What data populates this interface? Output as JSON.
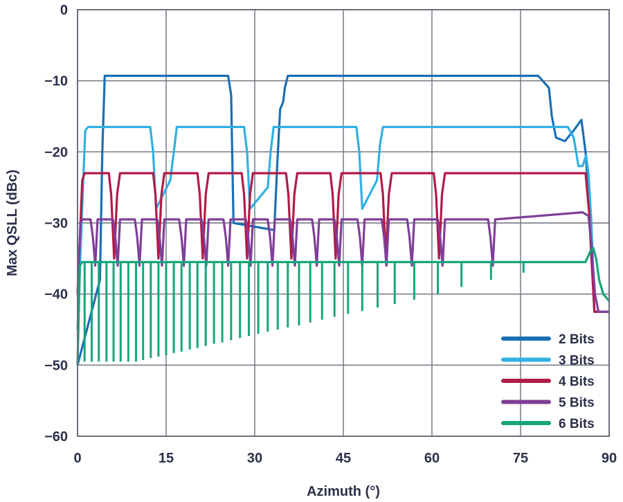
{
  "chart_data": {
    "type": "line",
    "xlabel": "Azimuth (°)",
    "ylabel": "Max QSLL (dBc)",
    "xlim": [
      0,
      90
    ],
    "ylim": [
      -60,
      0
    ],
    "xticks": [
      0,
      15,
      30,
      45,
      60,
      75,
      90
    ],
    "yticks": [
      0,
      -10,
      -20,
      -30,
      -40,
      -50,
      -60
    ],
    "xtick_labels": [
      "0",
      "15",
      "30",
      "45",
      "60",
      "75",
      "90"
    ],
    "ytick_labels": [
      "0",
      "−10",
      "−20",
      "−30",
      "−40",
      "−50",
      "−60"
    ],
    "grid": true,
    "legend_position": "bottom-right",
    "series": [
      {
        "name": "2 Bits",
        "color": "#1a6fb5",
        "x": [
          0,
          3.8,
          4.2,
          4.6,
          25.5,
          26.0,
          26.4,
          33.3,
          33.8,
          34.3,
          34.8,
          35.1,
          35.6,
          78.0,
          79.8,
          80.3,
          81.0,
          82.5,
          84.0,
          85.3,
          86.0,
          86.8,
          87.5,
          88.0,
          88.6,
          90
        ],
        "y": [
          -50,
          -38,
          -20,
          -9.3,
          -9.3,
          -12,
          -30,
          -31,
          -22,
          -14,
          -13,
          -11,
          -9.3,
          -9.3,
          -11,
          -15,
          -18,
          -18.5,
          -17,
          -15.5,
          -20,
          -30,
          -42.5,
          -42.5,
          -42.5,
          -42.5
        ]
      },
      {
        "name": "3 Bits",
        "color": "#30b0e3",
        "x": [
          0,
          1.3,
          1.8,
          12.3,
          12.8,
          13.3,
          15.7,
          16.3,
          16.8,
          28.2,
          28.7,
          29.2,
          32.2,
          32.7,
          33.2,
          47.2,
          47.7,
          48.2,
          50.7,
          51.2,
          51.7,
          52.2,
          83.0,
          84.0,
          84.8,
          85.5,
          86.1,
          86.5,
          87.0,
          87.5,
          90
        ],
        "y": [
          -45,
          -17,
          -16.5,
          -16.5,
          -20,
          -28,
          -24,
          -20,
          -16.5,
          -16.5,
          -20,
          -28,
          -25,
          -20,
          -16.5,
          -16.5,
          -20,
          -28,
          -24,
          -19,
          -16.5,
          -16.5,
          -16.5,
          -18,
          -22,
          -22,
          -20.5,
          -23,
          -30,
          -42.5,
          -42.5
        ]
      },
      {
        "name": "4 Bits",
        "color": "#b11b46",
        "x": [
          0,
          0.8,
          1.2,
          5.3,
          5.7,
          6.2,
          6.7,
          7.2,
          12.8,
          13.2,
          13.7,
          14.2,
          14.7,
          20.3,
          20.7,
          21.2,
          21.7,
          22.2,
          27.8,
          28.2,
          28.7,
          29.2,
          29.7,
          35.3,
          35.7,
          36.2,
          36.7,
          37.2,
          42.8,
          43.2,
          43.7,
          44.2,
          44.7,
          51.3,
          51.7,
          52.2,
          52.7,
          53.2,
          60.3,
          60.7,
          61.2,
          61.7,
          62.2,
          86.0,
          86.6,
          87.0,
          87.5,
          88.0,
          90
        ],
        "y": [
          -40,
          -24,
          -23,
          -23,
          -26,
          -35,
          -26,
          -23,
          -23,
          -26,
          -35,
          -26,
          -23,
          -23,
          -26,
          -35,
          -26,
          -23,
          -23,
          -26,
          -35,
          -26,
          -23,
          -23,
          -26,
          -35,
          -26,
          -23,
          -23,
          -26,
          -35,
          -26,
          -23,
          -23,
          -26,
          -35,
          -26,
          -23,
          -23,
          -26,
          -35,
          -26,
          -23,
          -23,
          -28.5,
          -35,
          -42.5,
          -42.5,
          -42.5
        ]
      },
      {
        "name": "5 Bits",
        "color": "#7f3f98",
        "x": [
          0,
          0.5,
          0.8,
          2.2,
          2.6,
          3.0,
          3.4,
          6.0,
          6.4,
          6.8,
          7.2,
          9.7,
          10.1,
          10.5,
          10.9,
          13.5,
          13.9,
          14.3,
          14.7,
          17.2,
          17.6,
          18.0,
          18.4,
          21.0,
          21.4,
          21.8,
          22.2,
          24.7,
          25.1,
          25.5,
          25.9,
          28.5,
          28.9,
          29.3,
          29.7,
          32.2,
          32.6,
          33.0,
          33.4,
          36.0,
          36.4,
          36.8,
          37.2,
          39.7,
          40.1,
          40.5,
          40.9,
          43.5,
          43.9,
          44.3,
          44.7,
          47.4,
          47.8,
          48.2,
          48.6,
          51.5,
          51.9,
          52.3,
          52.7,
          55.8,
          56.2,
          56.6,
          57.0,
          61.0,
          61.4,
          61.8,
          62.2,
          69.5,
          69.9,
          70.3,
          70.7,
          85.5,
          86.5,
          87.0,
          87.6,
          88.2,
          90
        ],
        "y": [
          -40,
          -30,
          -29.5,
          -29.5,
          -32,
          -36,
          -29.5,
          -29.5,
          -32,
          -36,
          -29.5,
          -29.5,
          -32,
          -36,
          -29.5,
          -29.5,
          -32,
          -36,
          -29.5,
          -29.5,
          -32,
          -36,
          -29.5,
          -29.5,
          -32,
          -36,
          -29.5,
          -29.5,
          -32,
          -36,
          -29.5,
          -29.5,
          -32,
          -36,
          -29.5,
          -29.5,
          -32,
          -36,
          -29.5,
          -29.5,
          -32,
          -36,
          -29.5,
          -29.5,
          -32,
          -36,
          -29.5,
          -29.5,
          -32,
          -36,
          -29.5,
          -29.5,
          -32,
          -36,
          -29.5,
          -29.5,
          -32,
          -36,
          -29.5,
          -29.5,
          -32,
          -36,
          -29.5,
          -29.5,
          -32,
          -36,
          -29.5,
          -29.5,
          -32,
          -36,
          -29.5,
          -28.5,
          -29,
          -33,
          -40,
          -42.5,
          -42.5
        ]
      },
      {
        "name": "6 Bits",
        "color": "#16a57a",
        "x": [
          0,
          0.4,
          0.8,
          86.0,
          86.8,
          87.3,
          87.8,
          88.3,
          89.0,
          90
        ],
        "y": [
          -50,
          -36,
          -35.5,
          -35.5,
          -34,
          -33.5,
          -35,
          -38,
          -40,
          -41
        ],
        "notches_x": [
          1.2,
          2.4,
          3.6,
          4.9,
          6.1,
          7.3,
          8.6,
          9.9,
          11.1,
          12.4,
          13.7,
          15.0,
          16.3,
          17.6,
          19.0,
          20.3,
          21.7,
          23.1,
          24.5,
          26.0,
          27.5,
          29.0,
          30.6,
          32.2,
          33.9,
          35.6,
          37.5,
          39.4,
          41.4,
          43.5,
          45.8,
          48.2,
          50.8,
          53.7,
          57.0,
          61.0,
          65.0,
          70.0,
          75.5
        ],
        "notches_y": [
          -49.5,
          -49.5,
          -49.5,
          -49.5,
          -49.5,
          -49.5,
          -49.5,
          -49.5,
          -49.3,
          -49.0,
          -48.8,
          -48.6,
          -48.3,
          -48.1,
          -47.8,
          -47.6,
          -47.3,
          -47.0,
          -46.8,
          -46.5,
          -46.2,
          -45.9,
          -45.6,
          -45.3,
          -45.0,
          -44.7,
          -44.4,
          -44.0,
          -43.6,
          -43.2,
          -42.8,
          -42.4,
          -41.9,
          -41.4,
          -40.8,
          -40.0,
          -39.0,
          -38.0,
          -37.0
        ]
      }
    ]
  }
}
